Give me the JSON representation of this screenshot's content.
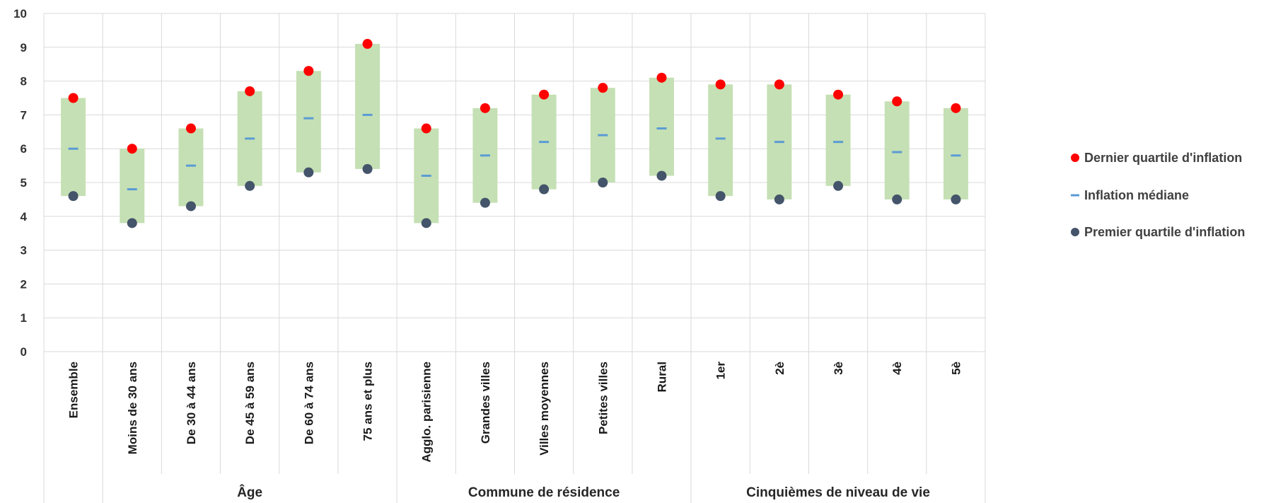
{
  "chart_data": {
    "type": "range",
    "ylim": [
      0,
      10
    ],
    "yticks": [
      "0",
      "1",
      "2",
      "3",
      "4",
      "5",
      "6",
      "7",
      "8",
      "9",
      "10"
    ],
    "grid": true,
    "legend_position": "right",
    "categories": [
      "Ensemble",
      "Moins de 30 ans",
      "De 30 à 44 ans",
      "De 45 à 59 ans",
      "De 60 à 74 ans",
      "75 ans et plus",
      "Agglo. parisienne",
      "Grandes villes",
      "Villes moyennes",
      "Petites villes",
      "Rural",
      "1er",
      "2è",
      "3è",
      "4è",
      "5è"
    ],
    "groups": [
      {
        "label": "",
        "start": 0,
        "end": 0
      },
      {
        "label": "Âge",
        "start": 1,
        "end": 5
      },
      {
        "label": "Commune de résidence",
        "start": 6,
        "end": 10
      },
      {
        "label": "Cinquièmes de niveau de vie",
        "start": 11,
        "end": 15
      }
    ],
    "series": [
      {
        "name": "Dernier quartile d'inflation",
        "color": "#ff0000",
        "marker": "circle",
        "values": [
          7.5,
          6.0,
          6.6,
          7.7,
          8.3,
          9.1,
          6.6,
          7.2,
          7.6,
          7.8,
          8.1,
          7.9,
          7.9,
          7.6,
          7.4,
          7.2
        ]
      },
      {
        "name": "Inflation médiane",
        "color": "#5b9bd5",
        "marker": "dash",
        "values": [
          6.0,
          4.8,
          5.5,
          6.3,
          6.9,
          7.0,
          5.2,
          5.8,
          6.2,
          6.4,
          6.6,
          6.3,
          6.2,
          6.2,
          5.9,
          5.8
        ]
      },
      {
        "name": "Premier quartile d'inflation",
        "color": "#44546a",
        "marker": "circle",
        "values": [
          4.6,
          3.8,
          4.3,
          4.9,
          5.3,
          5.4,
          3.8,
          4.4,
          4.8,
          5.0,
          5.2,
          4.6,
          4.5,
          4.9,
          4.5,
          4.5
        ]
      }
    ],
    "range_color": "#c5e0b4"
  }
}
